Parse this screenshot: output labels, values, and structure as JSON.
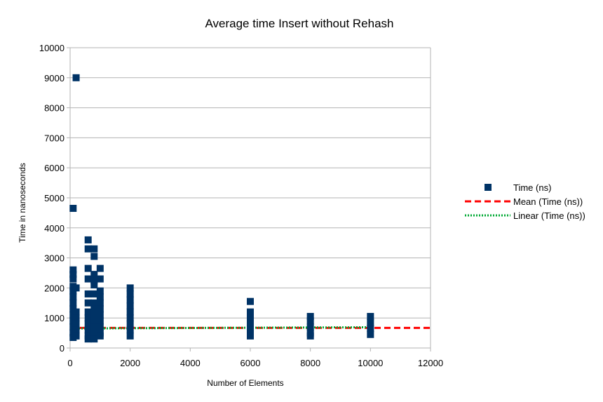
{
  "chart_data": {
    "type": "scatter",
    "title": "Average time Insert without Rehash",
    "xlabel": "Number of Elements",
    "ylabel": "Time in nanoseconds",
    "xlim": [
      0,
      12000
    ],
    "ylim": [
      0,
      10000
    ],
    "x_ticks": [
      "0",
      "2000",
      "4000",
      "6000",
      "8000",
      "10000",
      "12000"
    ],
    "y_ticks": [
      "0",
      "1000",
      "2000",
      "3000",
      "4000",
      "5000",
      "6000",
      "7000",
      "8000",
      "9000",
      "10000"
    ],
    "grid": "horizontal",
    "legend_position": "right",
    "series": [
      {
        "name": "Time (ns)",
        "kind": "points",
        "color": "#003366",
        "points": [
          [
            100,
            4650
          ],
          [
            100,
            2600
          ],
          [
            100,
            2450
          ],
          [
            100,
            2300
          ],
          [
            100,
            2050
          ],
          [
            100,
            1900
          ],
          [
            100,
            1700
          ],
          [
            100,
            1500
          ],
          [
            100,
            1300
          ],
          [
            100,
            1100
          ],
          [
            100,
            900
          ],
          [
            100,
            700
          ],
          [
            100,
            500
          ],
          [
            100,
            350
          ],
          [
            200,
            9000
          ],
          [
            200,
            2000
          ],
          [
            200,
            1200
          ],
          [
            200,
            1000
          ],
          [
            200,
            800
          ],
          [
            200,
            600
          ],
          [
            200,
            400
          ],
          [
            600,
            3600
          ],
          [
            600,
            3300
          ],
          [
            600,
            2650
          ],
          [
            600,
            2300
          ],
          [
            600,
            1800
          ],
          [
            600,
            1500
          ],
          [
            600,
            1200
          ],
          [
            600,
            1000
          ],
          [
            600,
            800
          ],
          [
            600,
            600
          ],
          [
            600,
            400
          ],
          [
            600,
            300
          ],
          [
            800,
            3300
          ],
          [
            800,
            3050
          ],
          [
            800,
            2450
          ],
          [
            800,
            2250
          ],
          [
            800,
            2100
          ],
          [
            800,
            1800
          ],
          [
            800,
            1500
          ],
          [
            800,
            1300
          ],
          [
            800,
            1100
          ],
          [
            800,
            900
          ],
          [
            800,
            700
          ],
          [
            800,
            500
          ],
          [
            800,
            300
          ],
          [
            1000,
            2650
          ],
          [
            1000,
            2300
          ],
          [
            1000,
            1900
          ],
          [
            1000,
            1700
          ],
          [
            1000,
            1500
          ],
          [
            1000,
            1300
          ],
          [
            1000,
            1100
          ],
          [
            1000,
            900
          ],
          [
            1000,
            700
          ],
          [
            1000,
            500
          ],
          [
            1000,
            400
          ],
          [
            2000,
            2000
          ],
          [
            2000,
            1800
          ],
          [
            2000,
            1600
          ],
          [
            2000,
            1400
          ],
          [
            2000,
            1200
          ],
          [
            2000,
            1000
          ],
          [
            2000,
            800
          ],
          [
            2000,
            600
          ],
          [
            2000,
            400
          ],
          [
            6000,
            1550
          ],
          [
            6000,
            1200
          ],
          [
            6000,
            1000
          ],
          [
            6000,
            800
          ],
          [
            6000,
            600
          ],
          [
            6000,
            400
          ],
          [
            8000,
            1050
          ],
          [
            8000,
            900
          ],
          [
            8000,
            700
          ],
          [
            8000,
            500
          ],
          [
            8000,
            400
          ],
          [
            10000,
            1050
          ],
          [
            10000,
            850
          ],
          [
            10000,
            650
          ],
          [
            10000,
            450
          ]
        ]
      },
      {
        "name": "Mean (Time (ns))",
        "kind": "line",
        "style": "dashed",
        "color": "#ff0000",
        "x": [
          0,
          12000
        ],
        "y": [
          670,
          670
        ]
      },
      {
        "name": "Linear (Time (ns))",
        "kind": "line",
        "style": "dotted",
        "color": "#00a933",
        "x": [
          0,
          10000
        ],
        "y": [
          650,
          690
        ]
      }
    ]
  }
}
